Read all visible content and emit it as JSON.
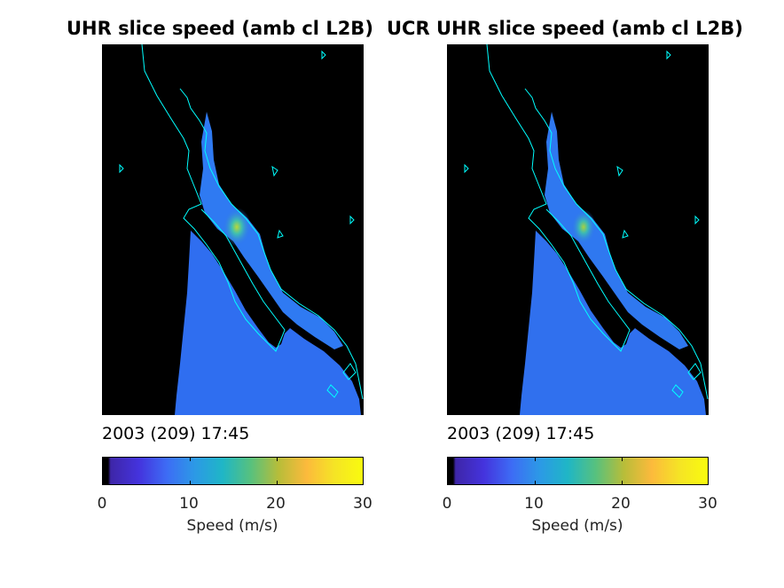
{
  "panels": [
    {
      "title": "UHR slice speed (amb cl L2B)",
      "timestamp": "2003 (209) 17:45",
      "colorbar": {
        "ticks": [
          "0",
          "10",
          "20",
          "30"
        ],
        "label": "Speed (m/s)",
        "min": 0,
        "max": 30
      }
    },
    {
      "title": "UCR UHR slice speed (amb cl L2B)",
      "timestamp": "2003 (209) 17:45",
      "colorbar": {
        "ticks": [
          "0",
          "10",
          "20",
          "30"
        ],
        "label": "Speed (m/s)",
        "min": 0,
        "max": 30
      }
    }
  ],
  "colors": {
    "background": "#000000",
    "coastline": "#00ffff",
    "wind_field": "#2f6ef0",
    "colormap": [
      "#3e26a8",
      "#4433dd",
      "#3d6cf5",
      "#2c99e6",
      "#1fb6c6",
      "#57c17e",
      "#b8bd39",
      "#fcba3c",
      "#f5e425",
      "#f9fb0e"
    ]
  }
}
